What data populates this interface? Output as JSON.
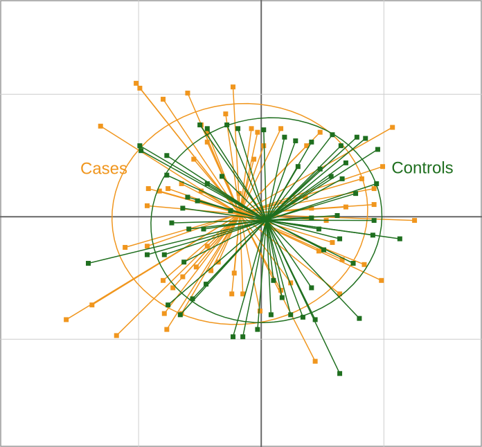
{
  "chart_data": {
    "type": "scatter",
    "xlim": [
      -2.13,
      1.8
    ],
    "ylim": [
      -1.88,
      1.77
    ],
    "xticks": [
      -1,
      0,
      1
    ],
    "yticks": [
      -1,
      0,
      1
    ],
    "grid": true,
    "series": [
      {
        "name": "Cases",
        "color": "#f0961e",
        "x": [
          -1.02,
          -0.99,
          -0.8,
          -0.6,
          -0.23,
          -1.31,
          -0.49,
          -0.44,
          -0.29,
          -0.08,
          -0.03,
          0.16,
          0.48,
          1.07,
          0.37,
          0.99,
          -0.92,
          -0.83,
          -0.76,
          -0.65,
          -0.93,
          0.92,
          0.82,
          0.92,
          1.25,
          -1.11,
          -0.93,
          -1.38,
          -1.59,
          -1.18,
          -0.77,
          -0.79,
          -0.65,
          -0.8,
          -0.72,
          -0.64,
          -0.53,
          -0.44,
          -0.35,
          -0.24,
          -0.15,
          -0.01,
          0.44,
          0.64,
          0.98,
          0.84,
          0.66,
          0.58,
          0.47,
          -0.49,
          -0.55,
          -0.44,
          0.02,
          -0.06,
          -0.18,
          0.36,
          0.53,
          0.69,
          0.24,
          0.16,
          0.41,
          -0.41,
          -0.22
        ],
        "y": [
          1.09,
          1.05,
          0.96,
          1.01,
          1.06,
          0.74,
          0.75,
          0.69,
          0.84,
          0.72,
          0.69,
          0.72,
          0.69,
          0.73,
          0.58,
          0.41,
          0.23,
          0.21,
          0.23,
          0.27,
          0.09,
          0.23,
          0.31,
          0.1,
          -0.03,
          -0.25,
          -0.24,
          -0.72,
          -0.84,
          -0.97,
          -0.92,
          -0.79,
          -0.79,
          -0.52,
          -0.58,
          -0.49,
          -0.41,
          -0.24,
          -0.37,
          -0.63,
          -0.63,
          -0.77,
          -1.18,
          -0.63,
          -0.52,
          -0.39,
          -0.35,
          -0.21,
          -0.28,
          0.21,
          0.47,
          0.61,
          0.58,
          0.47,
          0.19,
          0.16,
          -0.03,
          0.08,
          -0.54,
          -0.6,
          0.07,
          -0.44,
          -0.46
        ]
      },
      {
        "name": "Controls",
        "color": "#1f6f1f",
        "x": [
          -1.41,
          -0.99,
          -0.98,
          -0.77,
          -0.77,
          -0.64,
          -0.52,
          -0.6,
          -0.5,
          -0.44,
          -0.28,
          -0.19,
          0.02,
          0.19,
          0.28,
          0.41,
          0.58,
          0.65,
          0.78,
          0.85,
          0.95,
          0.69,
          0.66,
          0.57,
          0.94,
          0.77,
          0.92,
          1.13,
          0.91,
          0.64,
          0.51,
          0.75,
          0.8,
          0.64,
          0.44,
          0.34,
          0.24,
          0.17,
          0.08,
          -0.15,
          -0.23,
          -0.03,
          -0.45,
          -0.56,
          -0.66,
          -0.76,
          -0.93,
          -0.79,
          -0.63,
          -0.73,
          -0.59,
          -0.47,
          -0.44,
          -0.32,
          0.41,
          0.47,
          0.62,
          0.41,
          0.1,
          -0.25,
          0.3,
          0.48
        ],
        "y": [
          -0.38,
          0.58,
          0.54,
          0.5,
          0.34,
          0.07,
          0.13,
          0.16,
          0.75,
          0.72,
          0.75,
          0.72,
          0.71,
          0.65,
          0.62,
          0.61,
          0.67,
          0.58,
          0.65,
          0.64,
          0.55,
          0.44,
          0.31,
          0.33,
          0.27,
          0.19,
          -0.03,
          -0.18,
          -0.15,
          -0.18,
          -0.27,
          -0.38,
          -0.83,
          -1.28,
          -0.84,
          -0.82,
          -0.8,
          -0.66,
          -0.8,
          -0.98,
          -0.98,
          -0.92,
          -0.55,
          -0.67,
          -0.8,
          -0.72,
          -0.31,
          -0.31,
          -0.37,
          -0.05,
          -0.1,
          -0.1,
          0.27,
          0.33,
          -0.01,
          -0.1,
          0.01,
          -0.58,
          -0.52,
          0.05,
          0.41,
          0.39
        ]
      }
    ]
  }
}
